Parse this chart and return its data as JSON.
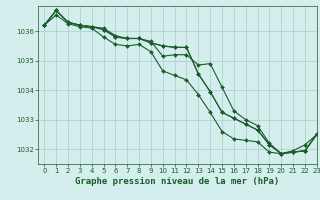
{
  "background_color": "#d4eeee",
  "grid_color": "#aacccc",
  "line_color": "#1a5c2a",
  "title": "Graphe pression niveau de la mer (hPa)",
  "xlim": [
    -0.5,
    23
  ],
  "ylim": [
    1031.5,
    1036.85
  ],
  "yticks": [
    1032,
    1033,
    1034,
    1035,
    1036
  ],
  "xticks": [
    0,
    1,
    2,
    3,
    4,
    5,
    6,
    7,
    8,
    9,
    10,
    11,
    12,
    13,
    14,
    15,
    16,
    17,
    18,
    19,
    20,
    21,
    22,
    23
  ],
  "series": [
    [
      1036.2,
      1036.7,
      1036.3,
      1036.2,
      1036.15,
      1036.1,
      1035.85,
      1035.75,
      1035.75,
      1035.65,
      1035.15,
      1035.2,
      1035.2,
      1034.85,
      1034.9,
      1034.1,
      1033.3,
      1033.0,
      1032.8,
      1032.2,
      1031.85,
      1031.95,
      1032.15,
      1032.5
    ],
    [
      1036.2,
      1036.7,
      1036.3,
      1036.2,
      1036.15,
      1036.05,
      1035.8,
      1035.75,
      1035.75,
      1035.6,
      1035.5,
      1035.45,
      1035.45,
      1034.55,
      1033.95,
      1033.25,
      1033.05,
      1032.85,
      1032.65,
      1032.15,
      1031.85,
      1031.9,
      1031.95,
      1032.5
    ],
    [
      1036.2,
      1036.7,
      1036.3,
      1036.2,
      1036.15,
      1036.05,
      1035.8,
      1035.75,
      1035.75,
      1035.6,
      1035.5,
      1035.45,
      1035.45,
      1034.55,
      1033.95,
      1033.25,
      1033.05,
      1032.85,
      1032.65,
      1032.15,
      1031.85,
      1031.9,
      1031.95,
      1032.5
    ],
    [
      1036.2,
      1036.55,
      1036.25,
      1036.15,
      1036.1,
      1035.8,
      1035.55,
      1035.5,
      1035.55,
      1035.3,
      1034.65,
      1034.5,
      1034.35,
      1033.85,
      1033.25,
      1032.6,
      1032.35,
      1032.3,
      1032.25,
      1031.9,
      1031.85,
      1031.9,
      1031.95,
      1032.5
    ]
  ],
  "marker": "D",
  "markersize": 2.0,
  "linewidth": 0.8,
  "title_fontsize": 6.5,
  "tick_fontsize": 5.0
}
